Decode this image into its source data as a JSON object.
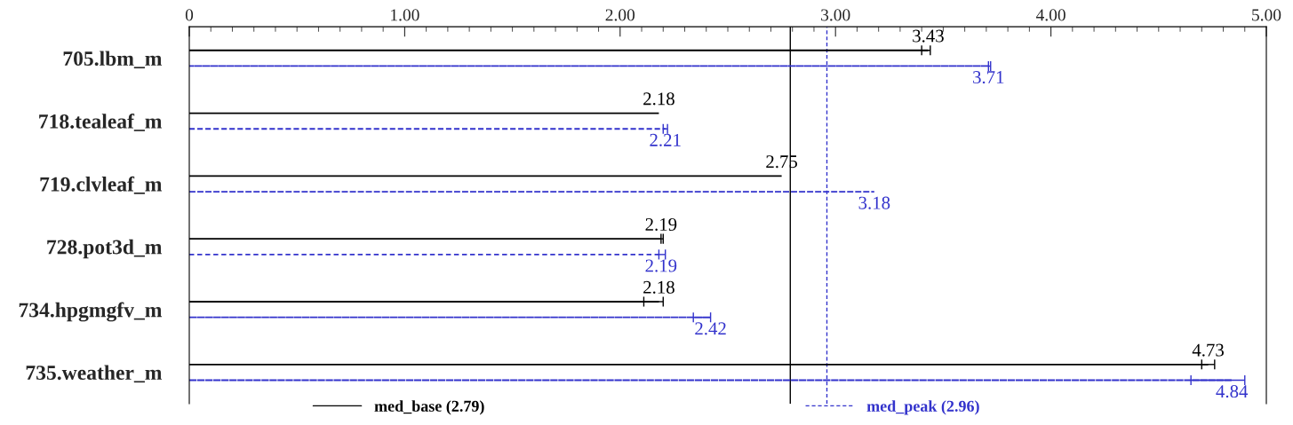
{
  "chart_data": {
    "type": "bar",
    "orientation": "horizontal",
    "categories": [
      "705.lbm_m",
      "718.tealeaf_m",
      "719.clvleaf_m",
      "728.pot3d_m",
      "734.hpgmgfv_m",
      "735.weather_m"
    ],
    "series": [
      {
        "name": "med_base (2.79)",
        "color": "#000000",
        "line_style": "solid",
        "values": [
          3.43,
          2.18,
          2.75,
          2.19,
          2.18,
          4.73
        ],
        "errors": [
          [
            3.4,
            3.44
          ],
          null,
          null,
          [
            2.19,
            2.2
          ],
          [
            2.11,
            2.2
          ],
          [
            4.7,
            4.76
          ]
        ]
      },
      {
        "name": "med_peak (2.96)",
        "color": "#3333cc",
        "line_style": "dashed",
        "values": [
          3.71,
          2.21,
          3.18,
          2.19,
          2.42,
          4.84
        ],
        "errors": [
          [
            3.71,
            3.72
          ],
          [
            2.2,
            2.22
          ],
          null,
          [
            2.18,
            2.21
          ],
          [
            2.34,
            2.42
          ],
          [
            4.65,
            4.9
          ]
        ]
      }
    ],
    "ref_lines": [
      {
        "axis": "x",
        "value": 2.79,
        "color": "#000000",
        "line_style": "solid"
      },
      {
        "axis": "x",
        "value": 2.96,
        "color": "#3333cc",
        "line_style": "dashed"
      }
    ],
    "xlim": [
      0,
      5
    ],
    "xticks": [
      {
        "value": 0,
        "label": "0"
      },
      {
        "value": 0.1,
        "label": null
      },
      {
        "value": 0.2,
        "label": null
      },
      {
        "value": 0.3,
        "label": null
      },
      {
        "value": 0.4,
        "label": null
      },
      {
        "value": 0.5,
        "label": null
      },
      {
        "value": 0.6,
        "label": null
      },
      {
        "value": 0.7,
        "label": null
      },
      {
        "value": 0.8,
        "label": null
      },
      {
        "value": 0.9,
        "label": null
      },
      {
        "value": 1,
        "label": "1.00"
      },
      {
        "value": 1.1,
        "label": null
      },
      {
        "value": 1.2,
        "label": null
      },
      {
        "value": 1.3,
        "label": null
      },
      {
        "value": 1.4,
        "label": null
      },
      {
        "value": 1.5,
        "label": null
      },
      {
        "value": 1.6,
        "label": null
      },
      {
        "value": 1.7,
        "label": null
      },
      {
        "value": 1.8,
        "label": null
      },
      {
        "value": 1.9,
        "label": null
      },
      {
        "value": 2,
        "label": "2.00"
      },
      {
        "value": 2.1,
        "label": null
      },
      {
        "value": 2.2,
        "label": null
      },
      {
        "value": 2.3,
        "label": null
      },
      {
        "value": 2.4,
        "label": null
      },
      {
        "value": 2.5,
        "label": null
      },
      {
        "value": 2.6,
        "label": null
      },
      {
        "value": 2.7,
        "label": null
      },
      {
        "value": 2.8,
        "label": null
      },
      {
        "value": 2.9,
        "label": null
      },
      {
        "value": 3,
        "label": "3.00"
      },
      {
        "value": 3.1,
        "label": null
      },
      {
        "value": 3.2,
        "label": null
      },
      {
        "value": 3.3,
        "label": null
      },
      {
        "value": 3.4,
        "label": null
      },
      {
        "value": 3.5,
        "label": null
      },
      {
        "value": 3.6,
        "label": null
      },
      {
        "value": 3.7,
        "label": null
      },
      {
        "value": 3.8,
        "label": null
      },
      {
        "value": 3.9,
        "label": null
      },
      {
        "value": 4,
        "label": "4.00"
      },
      {
        "value": 4.1,
        "label": null
      },
      {
        "value": 4.2,
        "label": null
      },
      {
        "value": 4.3,
        "label": null
      },
      {
        "value": 4.4,
        "label": null
      },
      {
        "value": 4.5,
        "label": null
      },
      {
        "value": 4.6,
        "label": null
      },
      {
        "value": 4.7,
        "label": null
      },
      {
        "value": 4.8,
        "label": null
      },
      {
        "value": 4.9,
        "label": null
      },
      {
        "value": 5,
        "label": "5.00"
      }
    ],
    "data_labels": true,
    "grid": false,
    "legend": "bottom"
  }
}
